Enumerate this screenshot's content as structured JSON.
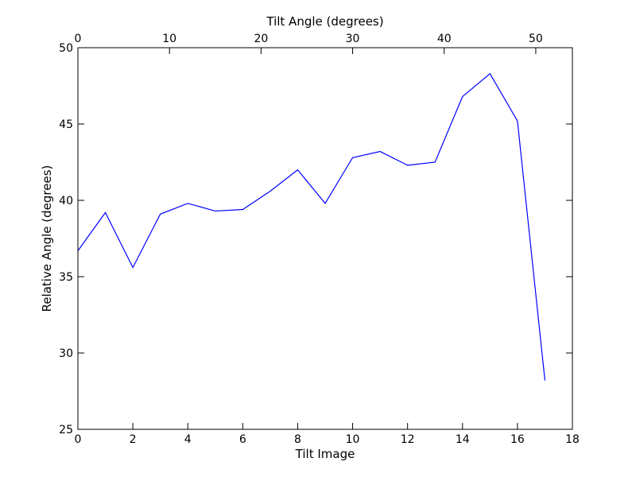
{
  "chart_data": {
    "type": "line",
    "xlabel": "Tilt Image",
    "ylabel": "Relative Angle (degrees)",
    "top_xlabel": "Tilt Angle (degrees)",
    "xlim": [
      0,
      18
    ],
    "ylim": [
      25,
      50
    ],
    "top_xlim": [
      0,
      54
    ],
    "x_ticks": [
      0,
      2,
      4,
      6,
      8,
      10,
      12,
      14,
      16,
      18
    ],
    "y_ticks": [
      25,
      30,
      35,
      40,
      45,
      50
    ],
    "top_x_ticks": [
      0,
      10,
      20,
      30,
      40,
      50
    ],
    "grid": false,
    "series": [
      {
        "color": "#0000ff",
        "x": [
          0,
          1,
          2,
          3,
          4,
          5,
          6,
          7,
          8,
          9,
          10,
          11,
          12,
          13,
          14,
          15,
          16,
          17
        ],
        "y": [
          36.7,
          39.2,
          35.6,
          39.1,
          39.8,
          39.3,
          39.4,
          40.6,
          42.0,
          39.8,
          42.8,
          43.2,
          42.3,
          42.5,
          46.8,
          48.3,
          45.2,
          28.2
        ]
      }
    ]
  }
}
